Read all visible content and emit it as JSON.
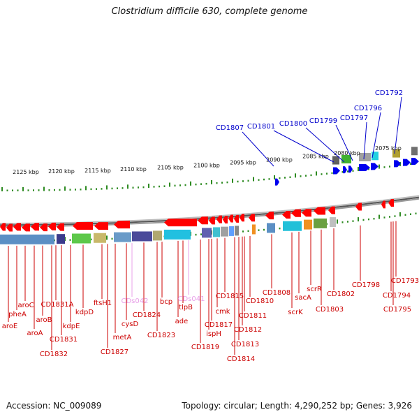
{
  "title": "Clostridium difficile 630, complete genome",
  "footer": {
    "accession": "Accession: NC_009089",
    "topology": "Topology: circular; Length: 4,290,252 bp; Genes: 3,926"
  },
  "colors": {
    "top_label": "#0000cc",
    "bottom_label": "#cc0000",
    "rna_label": "#e8a0e8",
    "minus_strand": "#ff0000",
    "plus_strand": "#0000ee",
    "tick": "#2e8b22"
  },
  "scale_labels": [
    "2125 kbp",
    "2120 kbp",
    "2115 kbp",
    "2110 kbp",
    "2105 kbp",
    "2100 kbp",
    "2095 kbp",
    "2090 kbp",
    "2085 kbp",
    "2080 kbp",
    "2075 kbp"
  ],
  "top_labels": [
    "CD1792",
    "CD1796",
    "CD1797",
    "CD1799",
    "CD1800",
    "CD1801",
    "CD1807"
  ],
  "bottom_labels": [
    "aroE",
    "pheA",
    "aroC",
    "aroA",
    "aroB",
    "CD1832",
    "CD1831",
    "CD1831A",
    "kdpE",
    "kdpD",
    "CD1827",
    "ftsH1",
    "metA",
    "cysD",
    "CDs042",
    "CD1824",
    "CD1823",
    "ade",
    "bcp",
    "tlpB",
    "CDs041",
    "CD1819",
    "CD1817",
    "ispH",
    "cmk",
    "CD1815",
    "CD1814",
    "CD1813",
    "CD1812",
    "CD1811",
    "CD1810",
    "CD1808",
    "scrK",
    "sacA",
    "scrR",
    "CD1803",
    "CD1802",
    "CD1798",
    "CD1795",
    "CD1794",
    "CD1793"
  ],
  "rna_labels": [
    "CDs042",
    "CDs041"
  ]
}
